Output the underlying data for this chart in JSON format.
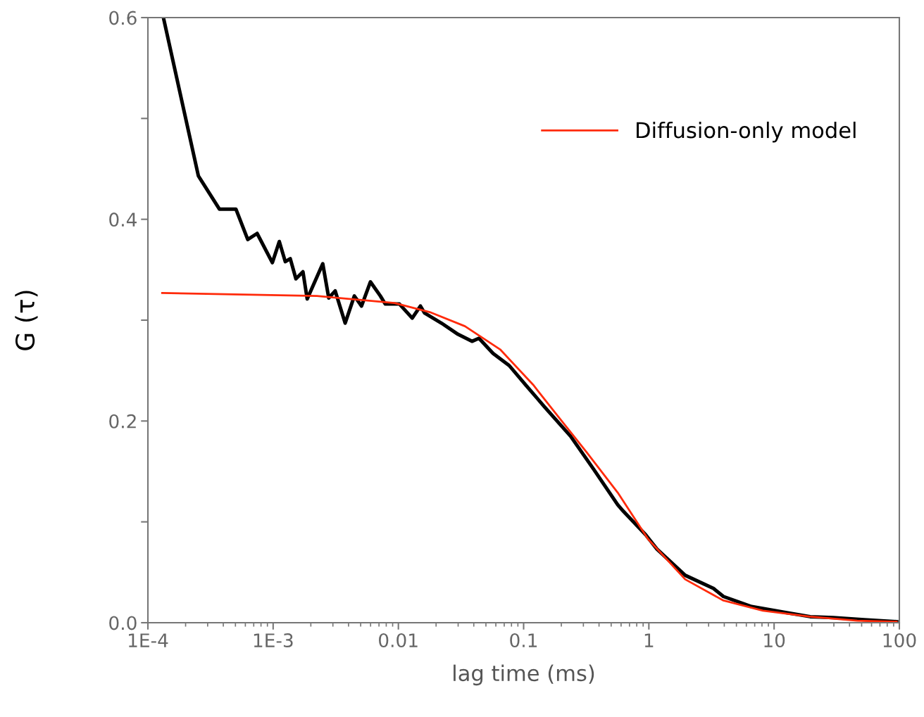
{
  "chart_data": {
    "type": "line",
    "xlabel": "lag time (ms)",
    "ylabel": "G (τ)",
    "log": "x",
    "xlim": [
      0.0001,
      100
    ],
    "ylim": [
      0,
      0.6
    ],
    "xticks": [
      {
        "value": 0.0001,
        "label": "1E-4"
      },
      {
        "value": 0.001,
        "label": "1E-3"
      },
      0.01,
      0.1,
      1,
      10,
      100
    ],
    "yticks": [
      {
        "value": 0,
        "label": "0.0"
      },
      {
        "value": 0.1,
        "label": null
      },
      0.2,
      {
        "value": 0.3,
        "label": null
      },
      0.4,
      {
        "value": 0.5,
        "label": null
      },
      0.6
    ],
    "grid": false,
    "legend": "top right",
    "series": [
      {
        "color": "#000000",
        "x": [
          0.000133,
          0.000253,
          0.000373,
          0.000505,
          0.000627,
          0.000745,
          0.000986,
          0.00112,
          0.00125,
          0.00137,
          0.00152,
          0.00173,
          0.00187,
          0.00249,
          0.00278,
          0.00313,
          0.00376,
          0.00445,
          0.00508,
          0.00598,
          0.00718,
          0.00785,
          0.0102,
          0.0129,
          0.015,
          0.0162,
          0.0221,
          0.0299,
          0.0387,
          0.044,
          0.057,
          0.0767,
          0.105,
          0.147,
          0.237,
          0.363,
          0.564,
          0.61,
          0.946,
          1.16,
          1.95,
          3.28,
          3.94,
          6.61,
          12.6,
          19.4,
          29.7,
          52.5,
          95.2
        ],
        "values": [
          0.6,
          0.443,
          0.41,
          0.41,
          0.38,
          0.386,
          0.357,
          0.378,
          0.358,
          0.361,
          0.341,
          0.348,
          0.321,
          0.356,
          0.322,
          0.329,
          0.297,
          0.324,
          0.314,
          0.338,
          0.324,
          0.316,
          0.316,
          0.302,
          0.314,
          0.307,
          0.297,
          0.286,
          0.279,
          0.282,
          0.267,
          0.255,
          0.235,
          0.214,
          0.185,
          0.152,
          0.117,
          0.112,
          0.087,
          0.073,
          0.047,
          0.034,
          0.026,
          0.016,
          0.01,
          0.006,
          0.005,
          0.003,
          0.001
        ]
      },
      {
        "name": "Diffusion-only model",
        "color": "#ff2a0a",
        "x": [
          0.00013,
          0.00224,
          0.00931,
          0.0178,
          0.034,
          0.0649,
          0.119,
          0.19,
          0.319,
          0.564,
          0.984,
          1.95,
          3.94,
          8.13,
          19.4,
          46.1,
          95.2
        ],
        "values": [
          0.327,
          0.324,
          0.317,
          0.308,
          0.294,
          0.271,
          0.236,
          0.204,
          0.169,
          0.129,
          0.083,
          0.043,
          0.022,
          0.012,
          0.006,
          0.002,
          0.001
        ]
      }
    ]
  }
}
